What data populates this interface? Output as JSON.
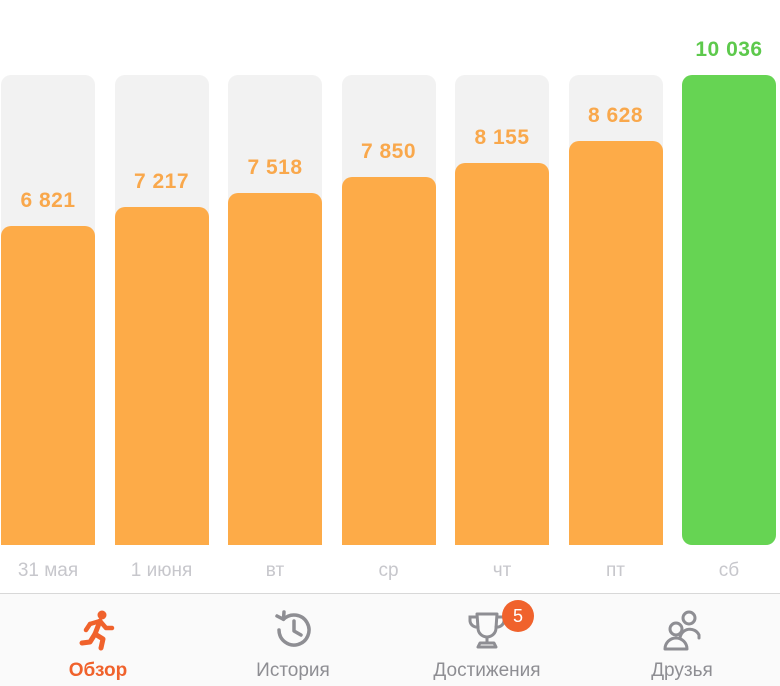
{
  "colors": {
    "orange_bar": "#fdab48",
    "orange_text": "#f9a84c",
    "goal_green": "#66d453",
    "green_text": "#5dc94c",
    "track_gray": "#f2f2f2",
    "active_tab": "#f0622c",
    "inactive_tab": "#8e8e93"
  },
  "chart_data": {
    "type": "bar",
    "categories": [
      "31 мая",
      "1 июня",
      "вт",
      "ср",
      "чт",
      "пт",
      "сб"
    ],
    "values": [
      6821,
      7217,
      7518,
      7850,
      8155,
      8628,
      10036
    ],
    "value_labels": [
      "6 821",
      "7 217",
      "7 518",
      "7 850",
      "8 155",
      "8 628",
      "10 036"
    ],
    "goal_reached": [
      false,
      false,
      false,
      false,
      false,
      false,
      true
    ],
    "ylim": [
      0,
      10036
    ],
    "title": "",
    "xlabel": "",
    "ylabel": ""
  },
  "tabbar": {
    "tabs": [
      {
        "label": "Обзор",
        "icon": "running-figure-icon",
        "active": true
      },
      {
        "label": "История",
        "icon": "history-clock-icon",
        "active": false
      },
      {
        "label": "Достижения",
        "icon": "trophy-icon",
        "active": false,
        "badge": "5"
      },
      {
        "label": "Друзья",
        "icon": "friends-icon",
        "active": false
      }
    ]
  }
}
